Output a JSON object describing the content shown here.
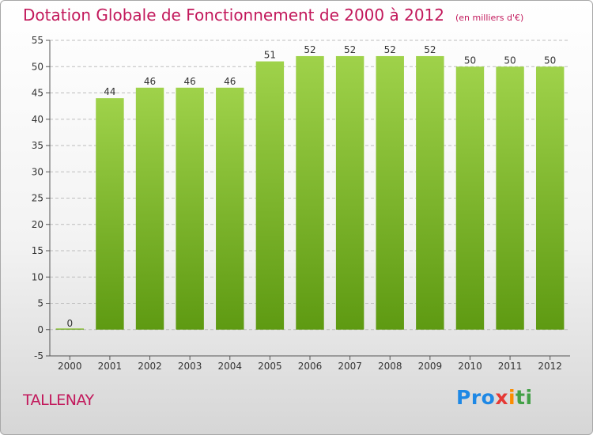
{
  "title": "Dotation Globale de Fonctionnement de 2000 à 2012",
  "unit": "(en milliers d'€)",
  "town": "TALLENAY",
  "logo": {
    "text": "Proxiti",
    "parts": [
      "Pro",
      "x",
      "i",
      "ti"
    ]
  },
  "colors": {
    "bar_top": "#9fd24a",
    "bar_bottom": "#5e9a12",
    "title": "#c2185b",
    "grid": "#bdbdbd"
  },
  "chart_data": {
    "type": "bar",
    "title": "Dotation Globale de Fonctionnement de 2000 à 2012",
    "subtitle": "(en milliers d'€)",
    "categories": [
      "2000",
      "2001",
      "2002",
      "2003",
      "2004",
      "2005",
      "2006",
      "2007",
      "2008",
      "2009",
      "2010",
      "2011",
      "2012"
    ],
    "values": [
      0,
      44,
      46,
      46,
      46,
      51,
      52,
      52,
      52,
      52,
      50,
      50,
      50
    ],
    "ylim": [
      -5,
      55
    ],
    "yticks": [
      -5,
      0,
      5,
      10,
      15,
      20,
      25,
      30,
      35,
      40,
      45,
      50,
      55
    ],
    "grid": "horizontal dashed",
    "legend": "none"
  }
}
